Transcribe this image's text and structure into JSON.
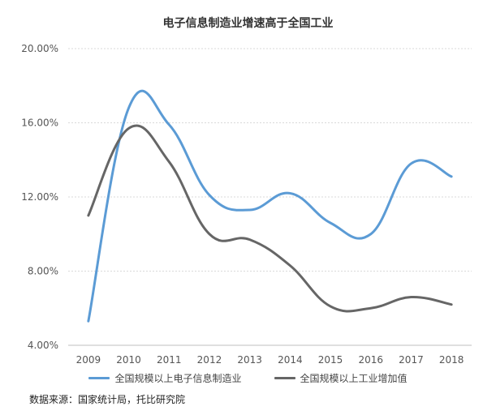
{
  "chart_data": {
    "type": "line",
    "title": "电子信息制造业增速高于全国工业",
    "x": [
      "2009",
      "2010",
      "2011",
      "2012",
      "2013",
      "2014",
      "2015",
      "2016",
      "2017",
      "2018"
    ],
    "yticks": [
      "4.00%",
      "8.00%",
      "12.00%",
      "16.00%",
      "20.00%"
    ],
    "ylim": [
      4,
      20
    ],
    "grid": true,
    "legend_position": "bottom",
    "series": [
      {
        "name": "全国规模以上电子信息制造业",
        "color": "#5b9bd5",
        "values": [
          5.3,
          16.8,
          15.9,
          12.1,
          11.3,
          12.2,
          10.6,
          10.0,
          13.8,
          13.1
        ]
      },
      {
        "name": "全国规模以上工业增加值",
        "color": "#666666",
        "values": [
          11.0,
          15.7,
          13.9,
          10.0,
          9.7,
          8.3,
          6.1,
          6.0,
          6.6,
          6.2
        ]
      }
    ]
  },
  "source": "数据来源：国家统计局，托比研究院"
}
